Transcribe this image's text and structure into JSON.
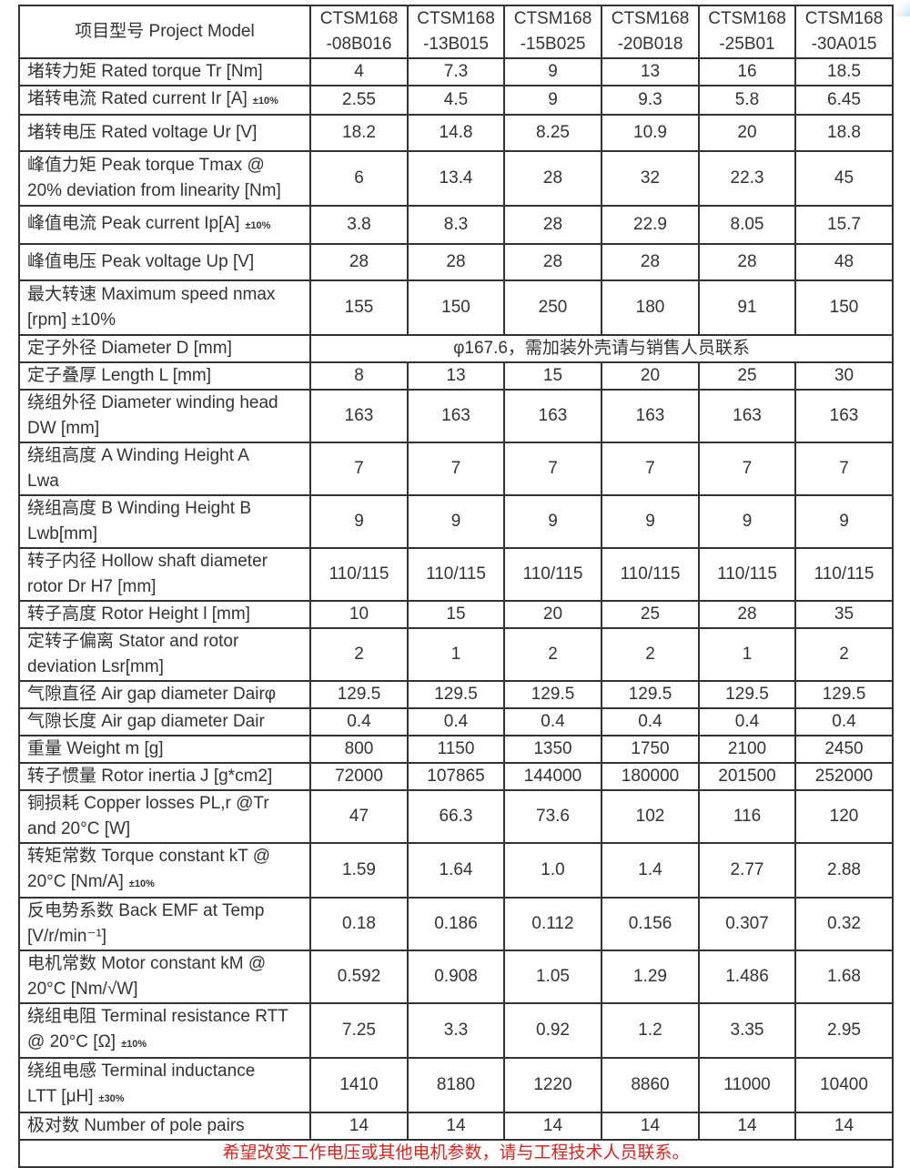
{
  "header": {
    "label": "项目型号 Project Model",
    "models": [
      "CTSM168\n-08B016",
      "CTSM168\n-13B015",
      "CTSM168\n-15B025",
      "CTSM168\n-20B018",
      "CTSM168\n-25B01",
      "CTSM168\n-30A015"
    ]
  },
  "rows": [
    {
      "label": "堵转力矩 Rated torque Tr    [Nm]",
      "note": "",
      "values": [
        "4",
        "7.3",
        "9",
        "13",
        "16",
        "18.5"
      ]
    },
    {
      "label": "堵转电流 Rated current Ir [A]",
      "note": "±10%",
      "values": [
        "2.55",
        "4.5",
        "9",
        "9.3",
        "5.8",
        "6.45"
      ]
    },
    {
      "label": "堵转电压 Rated voltage Ur [V]",
      "note": "",
      "values": [
        "18.2",
        "14.8",
        "8.25",
        "10.9",
        "20",
        "18.8"
      ]
    },
    {
      "label": "峰值力矩 Peak torque Tmax @\n20% deviation from linearity [Nm]",
      "note": "",
      "values": [
        "6",
        "13.4",
        "28",
        "32",
        "22.3",
        "45"
      ]
    },
    {
      "label": "峰值电流 Peak current Ip[A]",
      "note": "±10%",
      "values": [
        "3.8",
        "8.3",
        "28",
        "22.9",
        "8.05",
        "15.7"
      ]
    },
    {
      "label": "峰值电压 Peak voltage Up [V]",
      "note": "",
      "values": [
        "28",
        "28",
        "28",
        "28",
        "28",
        "48"
      ]
    },
    {
      "label": "最大转速  Maximum speed nmax\n[rpm] ±10%",
      "note": "",
      "values": [
        "155",
        "150",
        "250",
        "180",
        "91",
        "150"
      ]
    },
    {
      "label": "定子外径 Diameter D [mm]",
      "note": "",
      "merged": "φ167.6，需加装外壳请与销售人员联系"
    },
    {
      "label": "定子叠厚 Length L [mm]",
      "note": "",
      "values": [
        "8",
        "13",
        "15",
        "20",
        "25",
        "30"
      ]
    },
    {
      "label": "绕组外径 Diameter winding head\nDW [mm]",
      "note": "",
      "values": [
        "163",
        "163",
        "163",
        "163",
        "163",
        "163"
      ]
    },
    {
      "label": "绕组高度 A Winding Height A\nLwa",
      "note": "",
      "values": [
        "7",
        "7",
        "7",
        "7",
        "7",
        "7"
      ]
    },
    {
      "label": "绕组高度 B Winding Height B\nLwb[mm]",
      "note": "",
      "values": [
        "9",
        "9",
        "9",
        "9",
        "9",
        "9"
      ]
    },
    {
      "label": "转子内径 Hollow shaft diameter\nrotor Dr H7 [mm]",
      "note": "",
      "values": [
        "110/115",
        "110/115",
        "110/115",
        "110/115",
        "110/115",
        "110/115"
      ]
    },
    {
      "label": "转子高度 Rotor Height l [mm]",
      "note": "",
      "values": [
        "10",
        "15",
        "20",
        "25",
        "28",
        "35"
      ]
    },
    {
      "label": "定转子偏离 Stator and rotor\ndeviation Lsr[mm]",
      "note": "",
      "values": [
        "2",
        "1",
        "2",
        "2",
        "1",
        "2"
      ]
    },
    {
      "label": "气隙直径  Air gap diameter Dairφ",
      "note": "",
      "values": [
        "129.5",
        "129.5",
        "129.5",
        "129.5",
        "129.5",
        "129.5"
      ]
    },
    {
      "label": "气隙长度  Air gap diameter Dair",
      "note": "",
      "values": [
        "0.4",
        "0.4",
        "0.4",
        "0.4",
        "0.4",
        "0.4"
      ]
    },
    {
      "label": "重量 Weight m [g]",
      "note": "",
      "values": [
        "800",
        "1150",
        "1350",
        "1750",
        "2100",
        "2450"
      ]
    },
    {
      "label": "转子惯量 Rotor inertia J [g*cm2]",
      "note": "",
      "values": [
        "72000",
        "107865",
        "144000",
        "180000",
        "201500",
        "252000"
      ]
    },
    {
      "label": "铜损耗 Copper losses PL,r @Tr\nand 20°C [W]",
      "note": "",
      "values": [
        "47",
        "66.3",
        "73.6",
        "102",
        "116",
        "120"
      ]
    },
    {
      "label": "转矩常数 Torque constant kT @\n20°C [Nm/A]",
      "note": "±10%",
      "values": [
        "1.59",
        "1.64",
        "1.0",
        "1.4",
        "2.77",
        "2.88"
      ]
    },
    {
      "label": "反电势系数 Back EMF at Temp\n[V/r/min⁻¹]",
      "note": "",
      "values": [
        "0.18",
        "0.186",
        "0.112",
        "0.156",
        "0.307",
        "0.32"
      ]
    },
    {
      "label": "电机常数 Motor constant kM @\n20°C [Nm/√W]",
      "note": "",
      "values": [
        "0.592",
        "0.908",
        "1.05",
        "1.29",
        "1.486",
        "1.68"
      ]
    },
    {
      "label": "绕组电阻 Terminal resistance RTT\n@ 20°C [Ω]",
      "note": "±10%",
      "values": [
        "7.25",
        "3.3",
        "0.92",
        "1.2",
        "3.35",
        "2.95"
      ]
    },
    {
      "label": "绕组电感 Terminal inductance\nLTT   [μH]",
      "note": "±30%",
      "values": [
        "1410",
        "8180",
        "1220",
        "8860",
        "11000",
        "10400"
      ]
    },
    {
      "label": "极对数 Number of pole pairs",
      "note": "",
      "values": [
        "14",
        "14",
        "14",
        "14",
        "14",
        "14"
      ]
    }
  ],
  "footer": "希望改变工作电压或其他电机参数，请与工程技术人员联系。",
  "colors": {
    "footer_text": "#e0201c",
    "border": "#333333"
  }
}
